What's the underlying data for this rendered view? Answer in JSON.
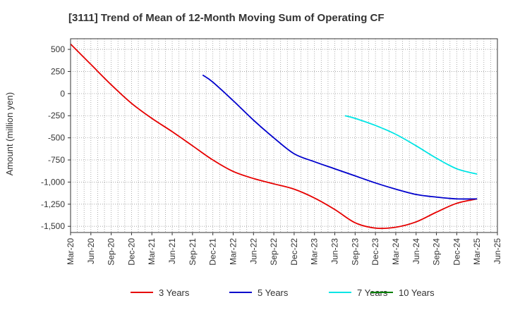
{
  "chart_data": {
    "type": "line",
    "title": "[3111]  Trend of Mean of 12-Month Moving Sum of Operating CF",
    "xlabel": "",
    "ylabel": "Amount (million yen)",
    "ylim": [
      -1570,
      620
    ],
    "y_ticks": [
      500,
      250,
      0,
      -250,
      -500,
      -750,
      -1000,
      -1250,
      -1500
    ],
    "y_tick_labels": [
      "500",
      "250",
      "0",
      "-250",
      "-500",
      "-750",
      "-1,000",
      "-1,250",
      "-1,500"
    ],
    "x_tick_labels": [
      "Mar-20",
      "Jun-20",
      "Sep-20",
      "Dec-20",
      "Mar-21",
      "Jun-21",
      "Sep-21",
      "Dec-21",
      "Mar-22",
      "Jun-22",
      "Sep-22",
      "Dec-22",
      "Mar-23",
      "Jun-23",
      "Sep-23",
      "Dec-23",
      "Mar-24",
      "Jun-24",
      "Sep-24",
      "Dec-24",
      "Mar-25",
      "Jun-25"
    ],
    "grid": true,
    "legend_position": "bottom",
    "series": [
      {
        "name": "3 Years",
        "color": "#e60000",
        "points": [
          [
            0,
            560
          ],
          [
            1,
            330
          ],
          [
            2,
            100
          ],
          [
            3,
            -110
          ],
          [
            4,
            -280
          ],
          [
            5,
            -430
          ],
          [
            6,
            -590
          ],
          [
            7,
            -750
          ],
          [
            8,
            -880
          ],
          [
            9,
            -960
          ],
          [
            10,
            -1020
          ],
          [
            11,
            -1080
          ],
          [
            12,
            -1180
          ],
          [
            13,
            -1310
          ],
          [
            14,
            -1460
          ],
          [
            15,
            -1520
          ],
          [
            16,
            -1510
          ],
          [
            17,
            -1450
          ],
          [
            18,
            -1340
          ],
          [
            19,
            -1240
          ],
          [
            20,
            -1190
          ]
        ]
      },
      {
        "name": "5 Years",
        "color": "#0000cc",
        "points": [
          [
            6.5,
            210
          ],
          [
            7,
            130
          ],
          [
            8,
            -80
          ],
          [
            9,
            -300
          ],
          [
            10,
            -500
          ],
          [
            11,
            -680
          ],
          [
            12,
            -770
          ],
          [
            13,
            -850
          ],
          [
            14,
            -930
          ],
          [
            15,
            -1010
          ],
          [
            16,
            -1080
          ],
          [
            17,
            -1140
          ],
          [
            18,
            -1170
          ],
          [
            19,
            -1190
          ],
          [
            20,
            -1190
          ]
        ]
      },
      {
        "name": "7 Years",
        "color": "#00e5e5",
        "points": [
          [
            13.5,
            -250
          ],
          [
            14,
            -280
          ],
          [
            15,
            -360
          ],
          [
            16,
            -460
          ],
          [
            17,
            -590
          ],
          [
            18,
            -730
          ],
          [
            19,
            -850
          ],
          [
            20,
            -910
          ]
        ]
      },
      {
        "name": "10 Years",
        "color": "#008000",
        "points": []
      }
    ]
  }
}
